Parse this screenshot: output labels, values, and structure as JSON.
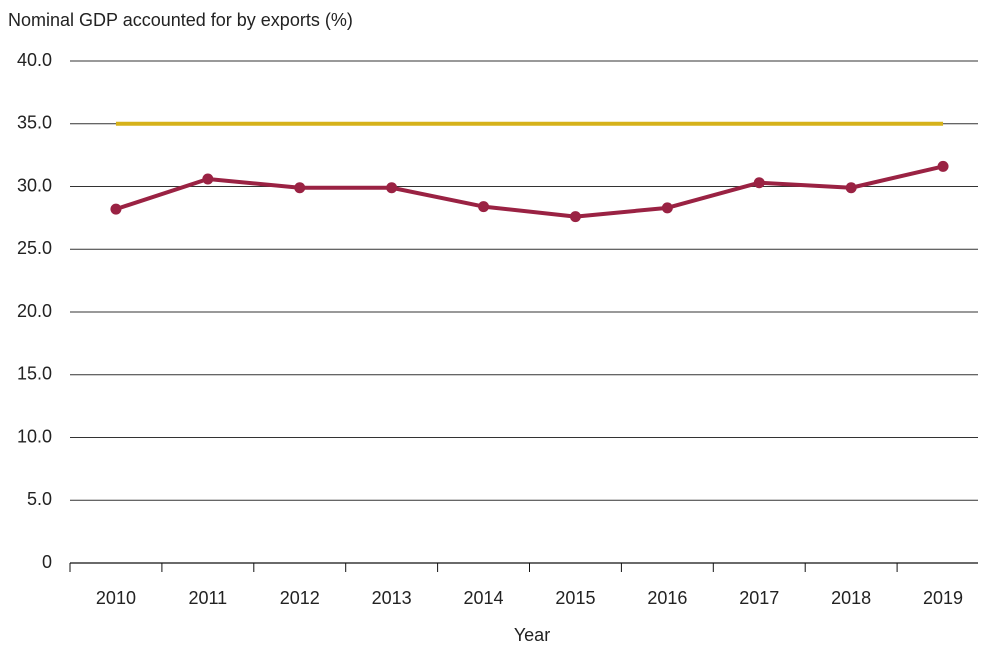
{
  "chart_data": {
    "type": "line",
    "title": "Nominal GDP accounted for by exports (%)",
    "x_label": "Year",
    "categories": [
      "2010",
      "2011",
      "2012",
      "2013",
      "2014",
      "2015",
      "2016",
      "2017",
      "2018",
      "2019"
    ],
    "series": [
      {
        "color": "#d6b21a",
        "markers": false,
        "values": [
          35,
          35,
          35,
          35,
          35,
          35,
          35,
          35,
          35,
          35
        ]
      },
      {
        "color": "#9a2243",
        "markers": true,
        "values": [
          28.2,
          30.6,
          29.9,
          29.9,
          28.4,
          27.6,
          28.3,
          30.3,
          29.9,
          31.6
        ]
      }
    ],
    "ylim": [
      0,
      40
    ],
    "yticks": [
      0,
      {
        "value": 5,
        "label": "5.0"
      },
      {
        "value": 10,
        "label": "10.0"
      },
      {
        "value": 15,
        "label": "15.0"
      },
      {
        "value": 20,
        "label": "20.0"
      },
      {
        "value": 25,
        "label": "25.0"
      },
      {
        "value": 30,
        "label": "30.0"
      },
      {
        "value": 35,
        "label": "35.0"
      },
      {
        "value": 40,
        "label": "40.0"
      }
    ],
    "grid": true
  }
}
